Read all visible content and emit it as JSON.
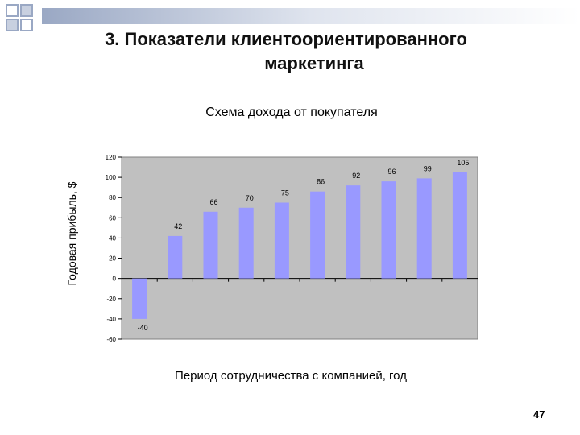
{
  "slide": {
    "title_line1": "3. Показатели клиентоориентированного",
    "title_line2": "маркетинга",
    "page_number": "47"
  },
  "chart_data": {
    "type": "bar",
    "title": "Схема дохода от покупателя",
    "xlabel": "Период сотрудничества с компанией, год",
    "ylabel": "Годовая прибыль, $",
    "categories": [
      "",
      "",
      "",
      "",
      "",
      "",
      "",
      "",
      "",
      ""
    ],
    "values": [
      -40,
      42,
      66,
      70,
      75,
      86,
      92,
      96,
      99,
      105
    ],
    "data_labels": [
      "-40",
      "42",
      "66",
      "70",
      "75",
      "86",
      "92",
      "96",
      "99",
      "105"
    ],
    "ylim": [
      -60,
      120
    ],
    "yticks": [
      120,
      100,
      80,
      60,
      40,
      20,
      0,
      -20,
      -40,
      -60
    ],
    "ytick_labels": [
      "120",
      "100",
      "80",
      "60",
      "40",
      "20",
      "0",
      "-20",
      "-40",
      "-60"
    ],
    "grid": false,
    "colors": {
      "bar": "#9999ff",
      "plot_background": "#c0c0c0",
      "decor_square": "#b8c2d6"
    }
  }
}
